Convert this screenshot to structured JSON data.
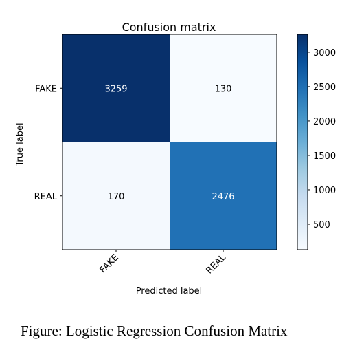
{
  "chart_data": {
    "type": "heatmap",
    "title": "Confusion matrix",
    "xlabel": "Predicted label",
    "ylabel": "True label",
    "x_categories": [
      "FAKE",
      "REAL"
    ],
    "y_categories": [
      "FAKE",
      "REAL"
    ],
    "values": [
      [
        3259,
        130
      ],
      [
        170,
        2476
      ]
    ],
    "colormap": "Blues",
    "color_range": [
      130,
      3259
    ],
    "colorbar_ticks": [
      500,
      1000,
      1500,
      2000,
      2500,
      3000
    ],
    "cell_text_threshold": 1694.5,
    "light_text_color": "#ffffff",
    "dark_text_color": "#000000"
  },
  "caption": "Figure: Logistic Regression Confusion Matrix"
}
